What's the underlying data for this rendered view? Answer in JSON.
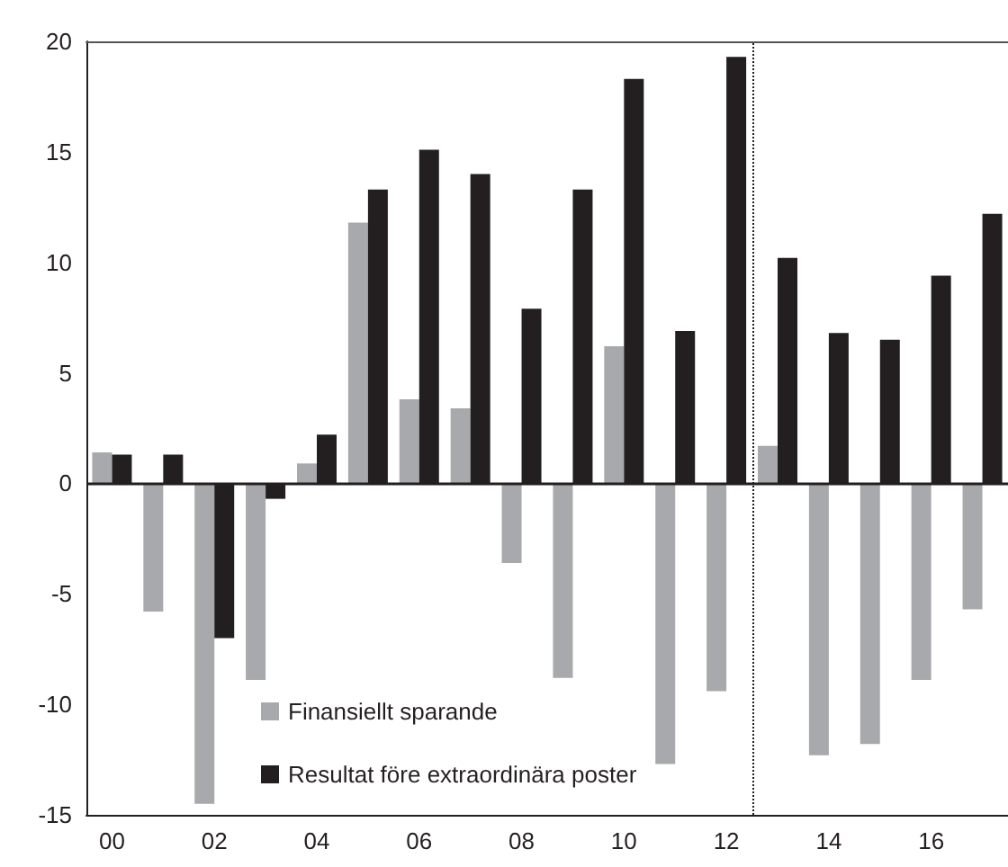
{
  "chart_data": {
    "type": "bar",
    "x": [
      2000,
      2001,
      2002,
      2003,
      2004,
      2005,
      2006,
      2007,
      2008,
      2009,
      2010,
      2011,
      2012,
      2013,
      2014,
      2015,
      2016,
      2017
    ],
    "xlim": [
      1999.5,
      2017.5
    ],
    "xticks": [
      {
        "value": 2000,
        "label": "00"
      },
      {
        "value": 2002,
        "label": "02"
      },
      {
        "value": 2004,
        "label": "04"
      },
      {
        "value": 2006,
        "label": "06"
      },
      {
        "value": 2008,
        "label": "08"
      },
      {
        "value": 2010,
        "label": "10"
      },
      {
        "value": 2012,
        "label": "12"
      },
      {
        "value": 2014,
        "label": "14"
      },
      {
        "value": 2016,
        "label": "16"
      }
    ],
    "ylim": [
      -15,
      20
    ],
    "yticks": [
      -15,
      -10,
      -5,
      0,
      5,
      10,
      15,
      20
    ],
    "series": [
      {
        "name": "Finansiellt sparande",
        "color": "#a7a9ac",
        "values": [
          1.4,
          -5.8,
          -14.5,
          -8.9,
          0.9,
          11.8,
          3.8,
          3.4,
          -3.6,
          -8.8,
          6.2,
          -12.7,
          -9.4,
          1.7,
          -12.3,
          -11.8,
          -8.9,
          -5.7
        ]
      },
      {
        "name": "Resultat före extraordinära poster",
        "color": "#231f20",
        "values": [
          1.3,
          1.3,
          -7.0,
          -0.7,
          2.2,
          13.3,
          15.1,
          14.0,
          7.9,
          13.3,
          18.3,
          6.9,
          19.3,
          10.2,
          6.8,
          6.5,
          9.4,
          12.2
        ]
      }
    ],
    "ref_lines": [
      {
        "axis": "y",
        "value": 0,
        "color": "#231f20",
        "line_style": "solid"
      },
      {
        "axis": "x",
        "value": 2012.5,
        "color": "#231f20",
        "line_style": "dotted"
      }
    ],
    "grid": false,
    "legend": "bottom left"
  }
}
